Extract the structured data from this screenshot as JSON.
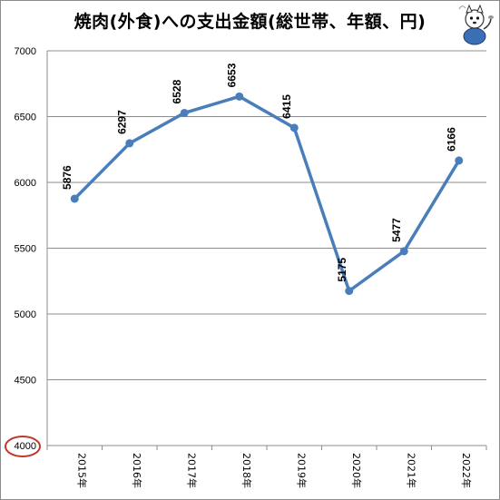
{
  "chart_data": {
    "type": "line",
    "title": "焼肉(外食)への支出金額(総世帯、年額、円)",
    "categories": [
      "2015年",
      "2016年",
      "2017年",
      "2018年",
      "2019年",
      "2020年",
      "2021年",
      "2022年"
    ],
    "series": [
      {
        "values": [
          5876,
          6297,
          6528,
          6653,
          6415,
          5175,
          5477,
          6166
        ]
      }
    ],
    "ylim": [
      4000,
      7000
    ],
    "yticks": [
      "7000",
      "6500",
      "6000",
      "5500",
      "5000",
      "4500",
      "4000"
    ],
    "grid": true,
    "line_color": "#4a7ebb",
    "highlight_color": "#c0392b",
    "highlight_tick": "4000"
  }
}
